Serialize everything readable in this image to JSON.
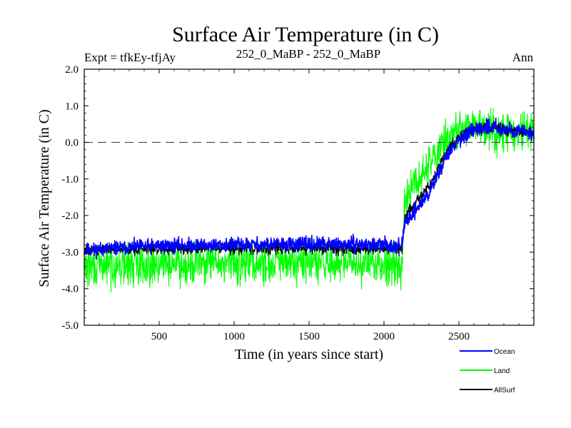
{
  "header": {
    "title": "Surface Air Temperature (in C)",
    "expt": "Expt = tfkEy-tfjAy",
    "subtitle": "252_0_MaBP - 252_0_MaBP",
    "period": "Ann"
  },
  "chart_data": {
    "type": "line",
    "title": "Surface Air Temperature (in C)",
    "xlabel": "Time (in years since start)",
    "ylabel": "Surface Air Temperature (in C)",
    "xlim": [
      0,
      3000
    ],
    "ylim": [
      -5.0,
      2.0
    ],
    "xticks": [
      500,
      1000,
      1500,
      2000,
      2500
    ],
    "xtick_labels": [
      "500",
      "1000",
      "1500",
      "2000",
      "2500"
    ],
    "yticks": [
      -5,
      -4,
      -3,
      -2,
      -1,
      0,
      1,
      2
    ],
    "ytick_labels": [
      "-5.0",
      "-4.0",
      "-3.0",
      "-2.0",
      "-1.0",
      "0.0",
      "1.0",
      "2.0"
    ],
    "reference_line": {
      "y": 0.0,
      "style": "dashed"
    },
    "grid": false,
    "legend_position": "bottom-right, below plot",
    "series": [
      {
        "name": "Ocean",
        "color": "#0000ff",
        "noise_amplitude": 0.1,
        "x": [
          0,
          500,
          1000,
          1500,
          2000,
          2120,
          2140,
          2200,
          2300,
          2400,
          2500,
          2600,
          2700,
          2800,
          2900,
          3000
        ],
        "values": [
          -2.95,
          -2.82,
          -2.8,
          -2.78,
          -2.8,
          -2.82,
          -2.2,
          -1.9,
          -1.4,
          -0.5,
          0.1,
          0.3,
          0.45,
          0.35,
          0.3,
          0.25
        ]
      },
      {
        "name": "Land",
        "color": "#00ff00",
        "noise_amplitude": 0.28,
        "x": [
          0,
          500,
          1000,
          1500,
          2000,
          2120,
          2140,
          2200,
          2300,
          2400,
          2500,
          2600,
          2700,
          2800,
          2900,
          3000
        ],
        "values": [
          -3.4,
          -3.3,
          -3.3,
          -3.3,
          -3.3,
          -3.3,
          -1.6,
          -1.2,
          -0.6,
          0.0,
          0.35,
          0.4,
          0.4,
          0.3,
          0.25,
          0.3
        ]
      },
      {
        "name": "AllSurf",
        "color": "#000000",
        "noise_amplitude": 0.08,
        "x": [
          0,
          500,
          1000,
          1500,
          2000,
          2120,
          2140,
          2200,
          2300,
          2400,
          2500,
          2600,
          2700,
          2800,
          2900,
          3000
        ],
        "values": [
          -2.95,
          -2.9,
          -2.9,
          -2.9,
          -2.9,
          -2.92,
          -2.0,
          -1.7,
          -1.2,
          -0.35,
          0.15,
          0.35,
          0.45,
          0.35,
          0.3,
          0.25
        ]
      }
    ]
  }
}
